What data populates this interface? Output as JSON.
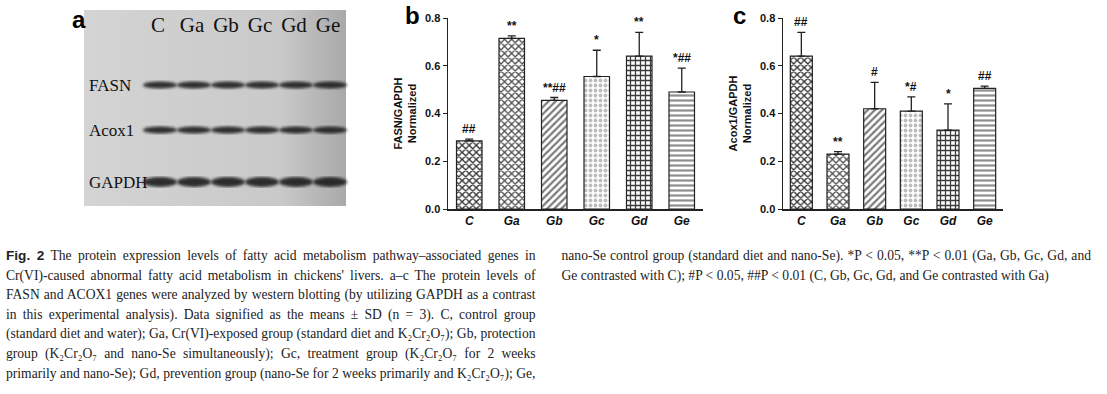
{
  "blot": {
    "panel": "a",
    "lanes": [
      "C",
      "Ga",
      "Gb",
      "Gc",
      "Gd",
      "Ge"
    ],
    "rows": [
      "FASN",
      "Acox1",
      "GAPDH"
    ]
  },
  "chart_data": [
    {
      "panel": "b",
      "type": "bar",
      "y_label": [
        "FASN/GAPDH",
        "Normalized"
      ],
      "categories": [
        "C",
        "Ga",
        "Gb",
        "Gc",
        "Gd",
        "Ge"
      ],
      "values": [
        0.285,
        0.715,
        0.455,
        0.555,
        0.64,
        0.49
      ],
      "errors": [
        0.008,
        0.01,
        0.012,
        0.11,
        0.1,
        0.1
      ],
      "annotations": [
        "##",
        "**",
        "**##",
        "*",
        "**",
        "*##"
      ],
      "colors": [
        "#2e2e2e",
        "#4a4a4a",
        "#7a7a7a",
        "#bdbdbd",
        "#3c3c3c",
        "#8f8f8f"
      ],
      "ylim": [
        0,
        0.8
      ],
      "yticks": [
        {
          "value": 0,
          "label": "0.0"
        },
        0.2,
        0.4,
        0.6,
        0.8
      ],
      "grid": false
    },
    {
      "panel": "c",
      "type": "bar",
      "y_label": [
        "Acox1/GAPDH",
        "Normalized"
      ],
      "categories": [
        "C",
        "Ga",
        "Gb",
        "Gc",
        "Gd",
        "Ge"
      ],
      "values": [
        0.64,
        0.23,
        0.42,
        0.41,
        0.33,
        0.505
      ],
      "errors": [
        0.1,
        0.01,
        0.11,
        0.06,
        0.11,
        0.01
      ],
      "annotations": [
        "##",
        "**",
        "#",
        "*#",
        "*",
        "##"
      ],
      "colors": [
        "#2e2e2e",
        "#4a4a4a",
        "#7a7a7a",
        "#bdbdbd",
        "#3c3c3c",
        "#8f8f8f"
      ],
      "ylim": [
        0,
        0.8
      ],
      "yticks": [
        {
          "value": 0,
          "label": "0.0"
        },
        0.2,
        0.4,
        0.6,
        0.8
      ],
      "grid": false
    }
  ],
  "caption": {
    "label": "Fig. 2",
    "text": "The protein expression levels of fatty acid metabolism pathway–associated genes in Cr(VI)-caused abnormal fatty acid metabolism in chickens' livers. a–c The protein levels of FASN and ACOX1 genes were analyzed by western blotting (by utilizing GAPDH as a contrast in this experimental analysis). Data signified as the means ± SD (n = 3). C, control group (standard diet and water); Ga, Cr(VI)-exposed group (standard diet and K₂Cr₂O₇); Gb, protection group (K₂Cr₂O₇ and nano-Se simultaneously); Gc, treatment group (K₂Cr₂O₇ for 2 weeks primarily and nano-Se); Gd, prevention group (nano-Se for 2 weeks primarily and K₂Cr₂O₇); Ge, nano-Se control group (standard diet and nano-Se). *P < 0.05, **P < 0.01 (Ga, Gb, Gc, Gd, and Ge contrasted with C); #P < 0.05, ##P < 0.01 (C, Gb, Gc, Gd, and Ge contrasted with Ga)"
  }
}
